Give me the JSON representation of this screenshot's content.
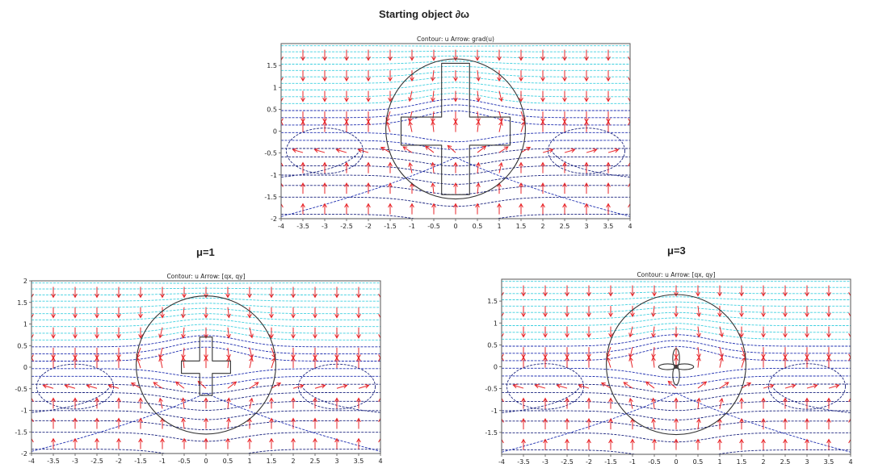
{
  "figure": {
    "panels": [
      {
        "id": "top",
        "heading": "Starting object ∂ω",
        "caption": "Contour: u   Arrow: grad(u)",
        "x_ticks": [
          "-4",
          "-3.5",
          "-3",
          "-2.5",
          "-2",
          "-1.5",
          "-1",
          "-0.5",
          "0",
          "0.5",
          "1",
          "1.5",
          "2",
          "2.5",
          "3",
          "3.5",
          "4"
        ],
        "y_ticks": [
          "1.5",
          "1",
          "0.5",
          "0",
          "-0.5",
          "-1",
          "-1.5",
          "-2"
        ],
        "object": "cross",
        "object_scale": 1.0
      },
      {
        "id": "mu1",
        "heading": "μ=1",
        "caption": "Contour: u   Arrow: [qx, qy]",
        "x_ticks": [
          "-4",
          "-3.5",
          "-3",
          "-2.5",
          "-2",
          "-1.5",
          "-1",
          "-0.5",
          "0",
          "0.5",
          "1",
          "1.5",
          "2",
          "2.5",
          "3",
          "3.5",
          "4"
        ],
        "y_ticks": [
          "2",
          "1.5",
          "1",
          "0.5",
          "0",
          "-0.5",
          "-1",
          "-1.5",
          "-2"
        ],
        "object": "cross",
        "object_scale": 0.45
      },
      {
        "id": "mu3",
        "heading": "μ=3",
        "caption": "Contour: u   Arrow: [qx, qy]",
        "x_ticks": [
          "-4",
          "-3.5",
          "-3",
          "-2.5",
          "-2",
          "-1.5",
          "-1",
          "-0.5",
          "0",
          "0.5",
          "1",
          "1.5",
          "2",
          "2.5",
          "3",
          "3.5",
          "4"
        ],
        "y_ticks": [
          "1.5",
          "1",
          "0.5",
          "0",
          "-0.5",
          "-1",
          "-1.5"
        ],
        "object": "petals",
        "object_scale": 0.55
      }
    ],
    "domain": {
      "xlim": [
        -4,
        4
      ],
      "ylim": [
        -2,
        2
      ],
      "circle_radius": 1.6
    },
    "colors": {
      "arrow": "#e8262a",
      "contour_high": "#3fd0e0",
      "contour_low": "#1f2fb0",
      "contour_dark": "#1a237e",
      "boundary": "#333333",
      "frame": "#555555"
    }
  }
}
